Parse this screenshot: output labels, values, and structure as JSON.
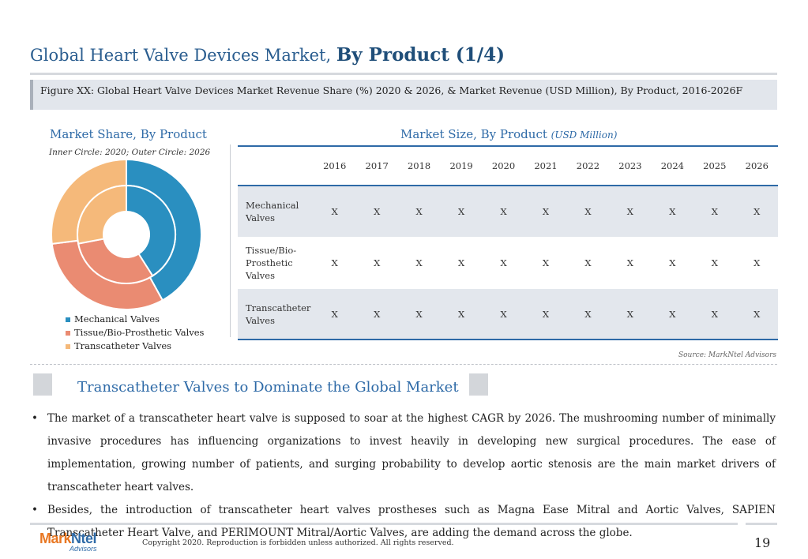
{
  "title": {
    "normal": "Global Heart Valve Devices Market, ",
    "bold": "By Product (1/4)"
  },
  "figure_caption": "Figure XX: Global Heart Valve Devices Market Revenue Share (%) 2020 & 2026, & Market Revenue (USD Million), By Product, 2016-2026F",
  "share_section": {
    "heading": "Market Share, By Product",
    "note": "Inner Circle: 2020; Outer Circle: 2026"
  },
  "size_section": {
    "heading": "Market Size, By Product ",
    "unit": "(USD Million)"
  },
  "colors": {
    "mechanical": "#2a8fc0",
    "tissue": "#ea8b72",
    "transcatheter": "#f5b97a",
    "accent": "#2e6aa7"
  },
  "chart_data": {
    "type": "pie",
    "variant": "nested-donut",
    "categories": [
      "Mechanical Valves",
      "Tissue/Bio-Prosthetic Valves",
      "Transcatheter Valves"
    ],
    "series": [
      {
        "name": "2020",
        "ring": "inner",
        "values": [
          41,
          31,
          28
        ]
      },
      {
        "name": "2026",
        "ring": "outer",
        "values": [
          42,
          31,
          27
        ]
      }
    ],
    "legend_position": "bottom-left"
  },
  "legend": [
    "Mechanical Valves",
    "Tissue/Bio-Prosthetic Valves",
    "Transcatheter Valves"
  ],
  "table": {
    "years": [
      "2016",
      "2017",
      "2018",
      "2019",
      "2020",
      "2021",
      "2022",
      "2023",
      "2024",
      "2025",
      "2026"
    ],
    "rows": [
      {
        "label": "Mechanical Valves",
        "values": [
          "X",
          "X",
          "X",
          "X",
          "X",
          "X",
          "X",
          "X",
          "X",
          "X",
          "X"
        ]
      },
      {
        "label": "Tissue/Bio-Prosthetic Valves",
        "values": [
          "X",
          "X",
          "X",
          "X",
          "X",
          "X",
          "X",
          "X",
          "X",
          "X",
          "X"
        ]
      },
      {
        "label": "Transcatheter Valves",
        "values": [
          "X",
          "X",
          "X",
          "X",
          "X",
          "X",
          "X",
          "X",
          "X",
          "X",
          "X"
        ]
      }
    ]
  },
  "source": "Source: MarkNtel Advisors",
  "subheading": "Transcatheter Valves to Dominate the Global Market",
  "bullets": [
    "The market of a transcatheter heart valve is supposed to soar at the highest CAGR by 2026. The mushrooming number of minimally invasive procedures has influencing organizations to invest heavily in developing new surgical procedures. The ease of implementation, growing number of patients, and surging probability to develop aortic stenosis are the main market drivers of transcatheter heart valves.",
    "Besides, the introduction of transcatheter heart valves prostheses such as Magna Ease Mitral and Aortic Valves, SAPIEN Transcatheter Heart Valve, and PERIMOUNT Mitral/Aortic Valves, are adding the demand across the globe."
  ],
  "bullet_symbol": "•",
  "footer": {
    "logo": {
      "part1": "Mark",
      "part2": "Ntel",
      "sub": "Advisors"
    },
    "copyright": "Copyright 2020. Reproduction is forbidden unless authorized. All rights reserved.",
    "page": "19"
  }
}
